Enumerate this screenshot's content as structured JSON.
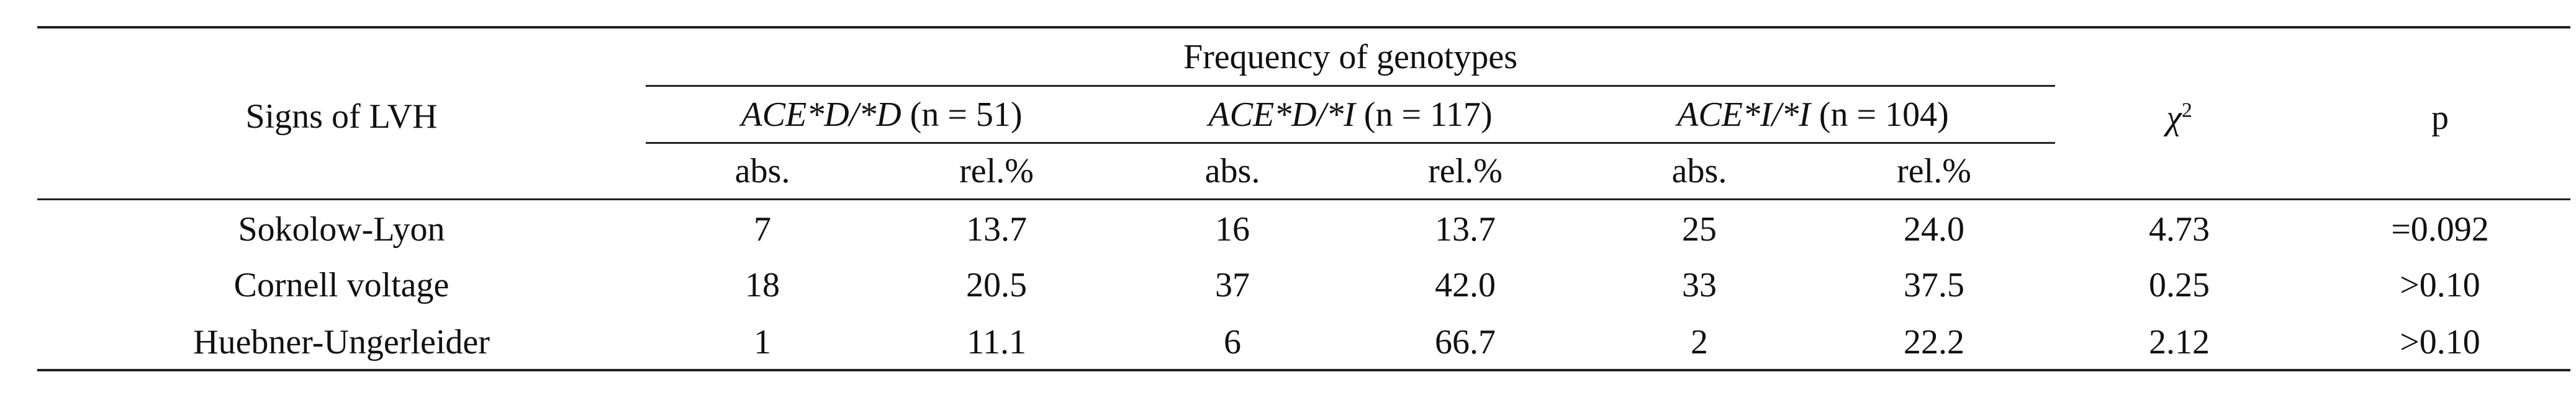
{
  "table": {
    "stub_header": "Signs of LVH",
    "group_header": "Frequency of genotypes",
    "genotypes": [
      {
        "name": "ACE*D/*D",
        "n": "(n = 51)"
      },
      {
        "name": "ACE*D/*I",
        "n": "(n = 117)"
      },
      {
        "name": "ACE*I/*I",
        "n": "(n = 104)"
      }
    ],
    "chi_header": "χ",
    "chi_sup": "2",
    "p_header": "p",
    "sub_headers": [
      "abs.",
      "rel.%",
      "abs.",
      "rel.%",
      "abs.",
      "rel.%"
    ],
    "rows": [
      {
        "label": "Sokolow-Lyon",
        "cells": [
          "7",
          "13.7",
          "16",
          "13.7",
          "25",
          "24.0",
          "4.73",
          "=0.092"
        ]
      },
      {
        "label": "Cornell voltage",
        "cells": [
          "18",
          "20.5",
          "37",
          "42.0",
          "33",
          "37.5",
          "0.25",
          ">0.10"
        ]
      },
      {
        "label": "Huebner-Ungerleider",
        "cells": [
          "1",
          "11.1",
          "6",
          "66.7",
          "2",
          "22.2",
          "2.12",
          ">0.10"
        ]
      }
    ]
  }
}
